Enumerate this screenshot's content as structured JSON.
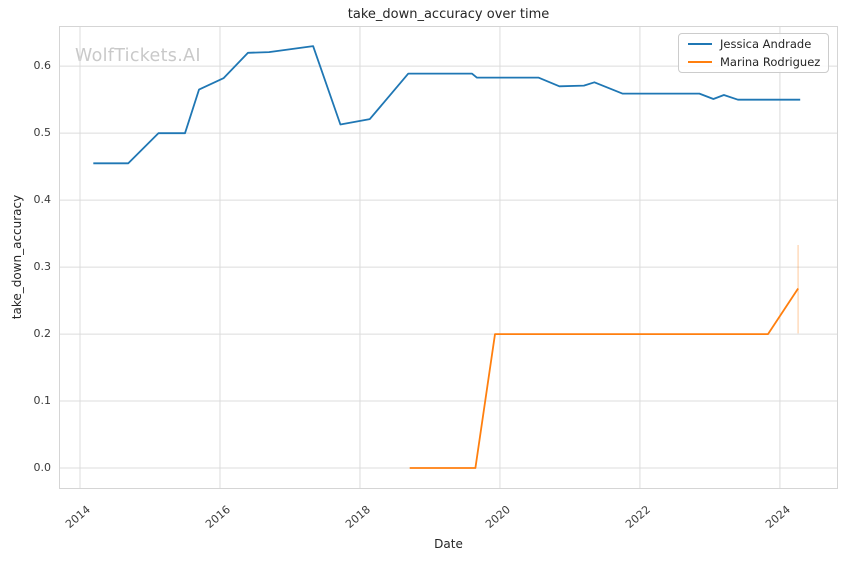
{
  "figure": {
    "title": "take_down_accuracy over time",
    "xlabel": "Date",
    "ylabel": "take_down_accuracy",
    "watermark": "WolfTickets.AI"
  },
  "legend": {
    "entries": [
      {
        "label": "Jessica Andrade",
        "color": "#1f77b4"
      },
      {
        "label": "Marina Rodriguez",
        "color": "#ff7f0e"
      }
    ]
  },
  "colors": {
    "grid": "#dcdcdc",
    "spine": "#d5d5d5",
    "background": "#ffffff",
    "text": "#262626",
    "tick_text": "#3a3a3a",
    "watermark": "#c9c9c9"
  },
  "chart_data": {
    "type": "line",
    "title": "take_down_accuracy over time",
    "xlabel": "Date",
    "ylabel": "take_down_accuracy",
    "xlim": [
      2013.7,
      2024.83
    ],
    "ylim": [
      -0.0313,
      0.66
    ],
    "xticks": [
      2014,
      2016,
      2018,
      2020,
      2022,
      2024
    ],
    "yticks": [
      0.0,
      0.1,
      0.2,
      0.3,
      0.4,
      0.5,
      0.6
    ],
    "grid": true,
    "legend_position": "upper right",
    "series": [
      {
        "name": "Jessica Andrade",
        "color": "#1f77b4",
        "x": [
          2014.19,
          2014.69,
          2015.12,
          2015.5,
          2015.7,
          2016.05,
          2016.4,
          2016.7,
          2017.33,
          2017.72,
          2018.14,
          2018.69,
          2019.6,
          2019.67,
          2020.55,
          2020.85,
          2021.2,
          2021.35,
          2021.75,
          2022.85,
          2023.05,
          2023.2,
          2023.4,
          2024.29
        ],
        "y": [
          0.455,
          0.455,
          0.5,
          0.5,
          0.565,
          0.582,
          0.62,
          0.621,
          0.63,
          0.513,
          0.521,
          0.589,
          0.589,
          0.583,
          0.583,
          0.57,
          0.571,
          0.576,
          0.559,
          0.559,
          0.551,
          0.557,
          0.55,
          0.55
        ]
      },
      {
        "name": "Marina Rodriguez",
        "color": "#ff7f0e",
        "x": [
          2018.71,
          2019.65,
          2019.93,
          2023.83,
          2024.26
        ],
        "y": [
          0.0,
          0.0,
          0.2,
          0.2,
          0.268
        ],
        "error_bar": {
          "x": 2024.26,
          "y_low": 0.201,
          "y_high": 0.333,
          "color": "rgba(255,127,14,0.28)"
        }
      }
    ]
  }
}
